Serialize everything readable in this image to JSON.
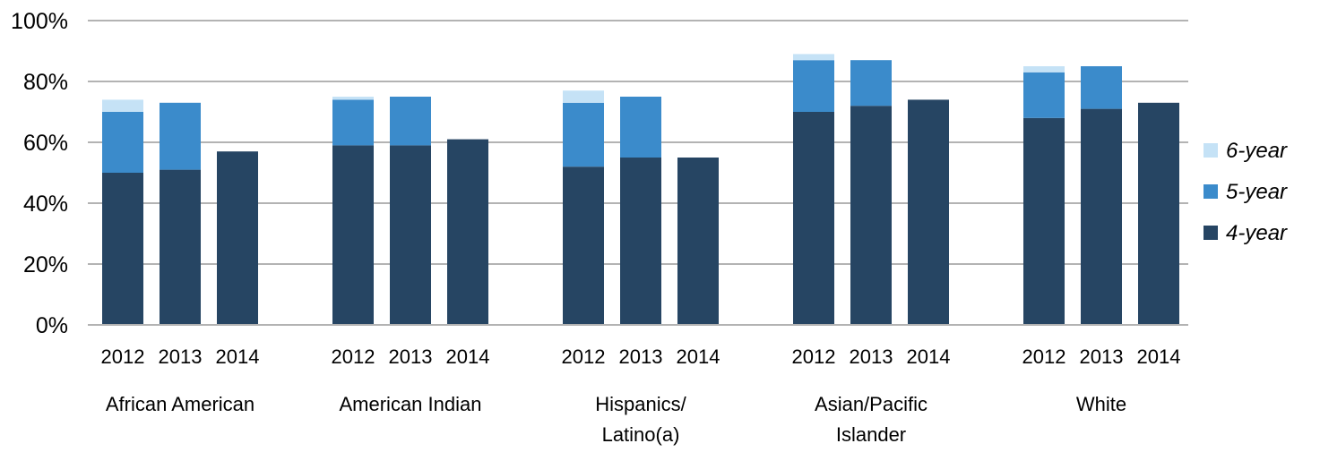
{
  "chart_data": {
    "type": "bar",
    "stacked": true,
    "ylim": [
      0,
      100
    ],
    "yticks": [
      0,
      20,
      40,
      60,
      80,
      100
    ],
    "ytick_labels": [
      "0%",
      "20%",
      "40%",
      "60%",
      "80%",
      "100%"
    ],
    "grid": true,
    "legend_position": "right",
    "groups": [
      {
        "name": "African American",
        "label_lines": [
          "African American"
        ]
      },
      {
        "name": "American Indian",
        "label_lines": [
          "American Indian"
        ]
      },
      {
        "name": "Hispanics/ Latino(a)",
        "label_lines": [
          "Hispanics/",
          "Latino(a)"
        ]
      },
      {
        "name": "Asian/Pacific Islander",
        "label_lines": [
          "Asian/Pacific",
          "Islander"
        ]
      },
      {
        "name": "White",
        "label_lines": [
          "White"
        ]
      }
    ],
    "years": [
      "2012",
      "2013",
      "2014"
    ],
    "series": [
      {
        "name": "4-year",
        "color": "#264563",
        "values": [
          [
            50,
            51,
            57
          ],
          [
            59,
            59,
            61
          ],
          [
            52,
            55,
            55
          ],
          [
            70,
            72,
            74
          ],
          [
            68,
            71,
            73
          ]
        ]
      },
      {
        "name": "5-year",
        "color": "#3b8bcb",
        "values": [
          [
            20,
            22,
            0
          ],
          [
            15,
            16,
            0
          ],
          [
            21,
            20,
            0
          ],
          [
            17,
            15,
            0
          ],
          [
            15,
            14,
            0
          ]
        ]
      },
      {
        "name": "6-year",
        "color": "#c5e2f6",
        "values": [
          [
            4,
            0,
            0
          ],
          [
            1,
            0,
            0
          ],
          [
            4,
            0,
            0
          ],
          [
            2,
            0,
            0
          ],
          [
            2,
            0,
            0
          ]
        ]
      }
    ],
    "legend_order": [
      "6-year",
      "5-year",
      "4-year"
    ]
  }
}
